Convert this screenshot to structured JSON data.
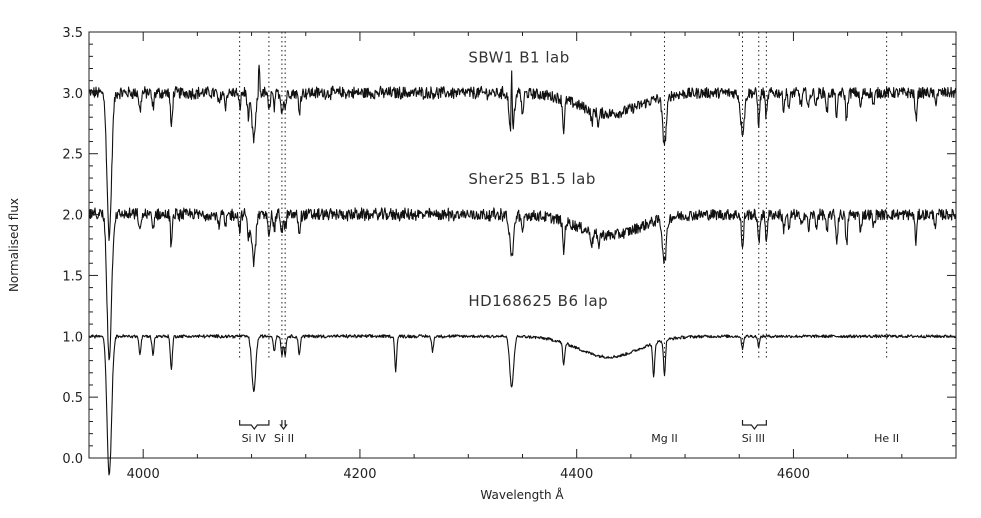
{
  "chart_data": {
    "type": "line",
    "xlabel": "Wavelength Å",
    "ylabel": "Normalised flux",
    "xlim": [
      3950,
      4750
    ],
    "ylim": [
      0.0,
      3.5
    ],
    "xticks": [
      4000,
      4200,
      4400,
      4600
    ],
    "xtick_labels": [
      "4000",
      "4200",
      "4400",
      "4600"
    ],
    "yticks": [
      0.0,
      0.5,
      1.0,
      1.5,
      2.0,
      2.5,
      3.0,
      3.5
    ],
    "ytick_labels": [
      "0.0",
      "0.5",
      "1.0",
      "1.5",
      "2.0",
      "2.5",
      "3.0",
      "3.5"
    ],
    "grid": false,
    "series_labels": [
      {
        "text": "SBW1   B1 lab",
        "x": 4300,
        "y": 3.3
      },
      {
        "text": "Sher25   B1.5 lab",
        "x": 4300,
        "y": 2.3
      },
      {
        "text": "HD168625   B6 lap",
        "x": 4300,
        "y": 1.3
      }
    ],
    "series": [
      {
        "offset": 3.0,
        "emission": [
          [
            4107,
            0.25
          ],
          [
            4340,
            0.6
          ]
        ],
        "lines": [
          [
            3968,
            0.85
          ],
          [
            3970,
            0.5
          ],
          [
            3997,
            0.15
          ],
          [
            4009,
            0.12
          ],
          [
            4026,
            0.28
          ],
          [
            4070,
            0.1
          ],
          [
            4076,
            0.1
          ],
          [
            4089,
            0.12
          ],
          [
            4097,
            0.2
          ],
          [
            4102,
            0.38
          ],
          [
            4116,
            0.15
          ],
          [
            4121,
            0.12
          ],
          [
            4128,
            0.15
          ],
          [
            4131,
            0.12
          ],
          [
            4144,
            0.15
          ],
          [
            4340,
            0.42
          ],
          [
            4350,
            0.18
          ],
          [
            4388,
            0.25
          ],
          [
            4414,
            0.1
          ],
          [
            4420,
            0.1
          ],
          [
            4481,
            0.38
          ],
          [
            4553,
            0.32
          ],
          [
            4568,
            0.25
          ],
          [
            4575,
            0.2
          ],
          [
            4591,
            0.12
          ],
          [
            4596,
            0.12
          ],
          [
            4607,
            0.1
          ],
          [
            4614,
            0.12
          ],
          [
            4621,
            0.1
          ],
          [
            4631,
            0.15
          ],
          [
            4640,
            0.2
          ],
          [
            4649,
            0.22
          ],
          [
            4662,
            0.12
          ],
          [
            4674,
            0.1
          ],
          [
            4713,
            0.22
          ],
          [
            4731,
            0.08
          ]
        ]
      },
      {
        "offset": 2.0,
        "emission": [],
        "lines": [
          [
            3968,
            0.85
          ],
          [
            3970,
            0.5
          ],
          [
            3997,
            0.15
          ],
          [
            4009,
            0.12
          ],
          [
            4026,
            0.25
          ],
          [
            4070,
            0.1
          ],
          [
            4076,
            0.1
          ],
          [
            4089,
            0.12
          ],
          [
            4097,
            0.2
          ],
          [
            4102,
            0.38
          ],
          [
            4116,
            0.15
          ],
          [
            4121,
            0.12
          ],
          [
            4128,
            0.15
          ],
          [
            4131,
            0.12
          ],
          [
            4144,
            0.15
          ],
          [
            4340,
            0.35
          ],
          [
            4350,
            0.18
          ],
          [
            4388,
            0.25
          ],
          [
            4414,
            0.1
          ],
          [
            4420,
            0.1
          ],
          [
            4481,
            0.35
          ],
          [
            4553,
            0.3
          ],
          [
            4568,
            0.25
          ],
          [
            4575,
            0.2
          ],
          [
            4591,
            0.12
          ],
          [
            4596,
            0.12
          ],
          [
            4607,
            0.1
          ],
          [
            4614,
            0.12
          ],
          [
            4621,
            0.1
          ],
          [
            4631,
            0.15
          ],
          [
            4640,
            0.22
          ],
          [
            4649,
            0.25
          ],
          [
            4662,
            0.12
          ],
          [
            4674,
            0.1
          ],
          [
            4713,
            0.22
          ],
          [
            4731,
            0.08
          ]
        ]
      },
      {
        "offset": 1.0,
        "emission": [],
        "lines": [
          [
            3968,
            0.82
          ],
          [
            3970,
            0.5
          ],
          [
            3997,
            0.15
          ],
          [
            4009,
            0.15
          ],
          [
            4026,
            0.28
          ],
          [
            4102,
            0.45
          ],
          [
            4121,
            0.12
          ],
          [
            4128,
            0.15
          ],
          [
            4131,
            0.15
          ],
          [
            4144,
            0.15
          ],
          [
            4233,
            0.28
          ],
          [
            4267,
            0.12
          ],
          [
            4340,
            0.42
          ],
          [
            4388,
            0.18
          ],
          [
            4471,
            0.28
          ],
          [
            4481,
            0.28
          ],
          [
            4553,
            0.1
          ],
          [
            4568,
            0.08
          ]
        ]
      }
    ],
    "broad_feature": {
      "center": 4430,
      "depth": 0.17,
      "width": 28
    },
    "line_markers": [
      {
        "x": 4089
      },
      {
        "x": 4116
      },
      {
        "x": 4128
      },
      {
        "x": 4131
      },
      {
        "x": 4481
      },
      {
        "x": 4553
      },
      {
        "x": 4568
      },
      {
        "x": 4575
      },
      {
        "x": 4686
      }
    ],
    "line_ids": [
      {
        "text": "Si IV",
        "x": 4102,
        "brace_from": 4089,
        "brace_to": 4116
      },
      {
        "text": "Si II",
        "x": 4130,
        "brace_from": 4128,
        "brace_to": 4131
      },
      {
        "text": "Mg II",
        "x": 4481
      },
      {
        "text": "Si III",
        "x": 4563,
        "brace_from": 4553,
        "brace_to": 4575
      },
      {
        "text": "He II",
        "x": 4686
      }
    ]
  }
}
